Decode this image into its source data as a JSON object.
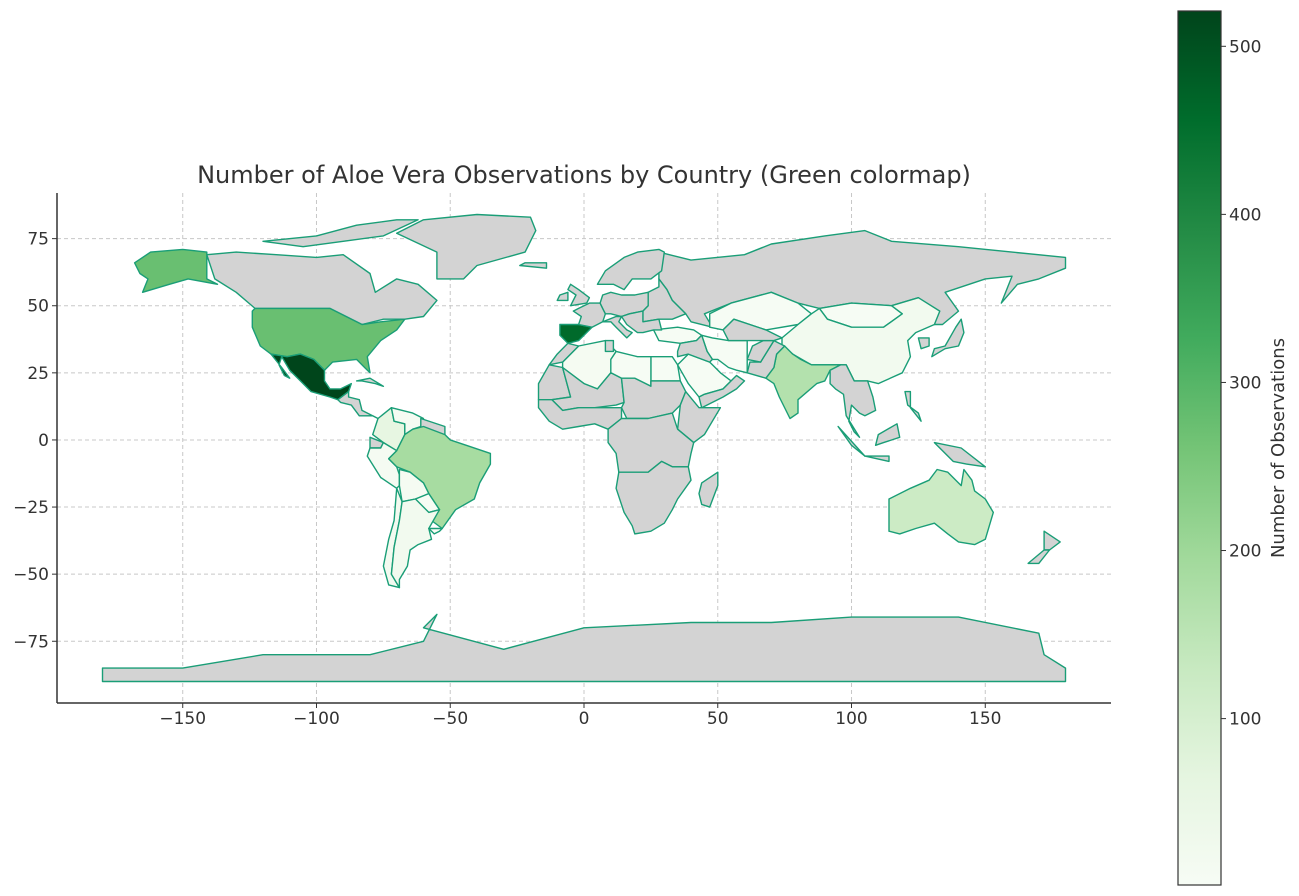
{
  "title": "Number of Aloe Vera Observations by Country (Green colormap)",
  "map": {
    "x_ticks": [
      -150,
      -100,
      -50,
      0,
      50,
      100,
      150
    ],
    "y_ticks": [
      75,
      50,
      25,
      0,
      -25,
      -50,
      -75
    ],
    "xlim": [
      -197,
      197
    ],
    "ylim": [
      -98,
      92
    ],
    "grid": true,
    "missing_color": "#d3d3d3",
    "border_color": "#1a9e77"
  },
  "colorbar": {
    "label": "Number of Observations",
    "ticks": [
      100,
      200,
      300,
      400,
      500
    ],
    "vmin": 1,
    "vmax": 521,
    "colors": [
      "#f7fcf5",
      "#e5f5e0",
      "#c7e9c0",
      "#a1d99b",
      "#74c476",
      "#41ab5d",
      "#238b45",
      "#006d2c",
      "#00441b"
    ]
  },
  "chart_data": {
    "type": "choropleth",
    "title": "Number of Aloe Vera Observations by Country (Green colormap)",
    "colorbar_label": "Number of Observations",
    "values": [
      {
        "country": "Mexico",
        "value": 520
      },
      {
        "country": "Spain",
        "value": 460
      },
      {
        "country": "United States",
        "value": 275
      },
      {
        "country": "Brazil",
        "value": 185
      },
      {
        "country": "India",
        "value": 165
      },
      {
        "country": "Australia",
        "value": 120
      },
      {
        "country": "Colombia",
        "value": 60
      },
      {
        "country": "China",
        "value": 20
      },
      {
        "country": "Argentina",
        "value": 20
      },
      {
        "country": "Chile",
        "value": 15
      },
      {
        "country": "Peru",
        "value": 10
      },
      {
        "country": "Bolivia",
        "value": 10
      },
      {
        "country": "Venezuela",
        "value": 10
      },
      {
        "country": "Algeria",
        "value": 10
      },
      {
        "country": "Libya",
        "value": 5
      },
      {
        "country": "Egypt",
        "value": 5
      },
      {
        "country": "Saudi Arabia",
        "value": 5
      },
      {
        "country": "Iran",
        "value": 5
      },
      {
        "country": "Turkey",
        "value": 5
      },
      {
        "country": "Kazakhstan",
        "value": 5
      },
      {
        "country": "Mongolia",
        "value": 5
      },
      {
        "country": "Uruguay",
        "value": 5
      },
      {
        "country": "Paraguay",
        "value": 5
      }
    ]
  }
}
